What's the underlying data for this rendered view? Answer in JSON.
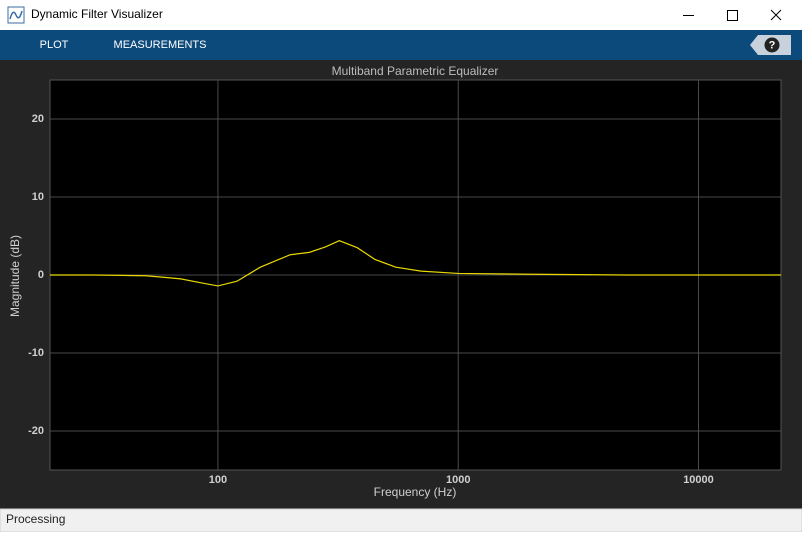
{
  "window": {
    "title": "Dynamic Filter Visualizer",
    "tabs": [
      "PLOT",
      "MEASUREMENTS"
    ],
    "help_button": "?",
    "status": "Processing"
  },
  "chart_data": {
    "type": "line",
    "title": "Multiband Parametric Equalizer",
    "x_label": "Frequency (Hz)",
    "y_label": "Magnitude (dB)",
    "x": [
      20,
      30,
      40,
      50,
      60,
      70,
      85,
      100,
      120,
      150,
      200,
      240,
      280,
      320,
      380,
      450,
      550,
      700,
      1000,
      2000,
      5000,
      10000,
      22050
    ],
    "series": [
      {
        "name": "Magnitude",
        "color": "#e8d800",
        "values": [
          0,
          0,
          -0.05,
          -0.1,
          -0.3,
          -0.5,
          -1.0,
          -1.4,
          -0.8,
          1.0,
          2.6,
          2.9,
          3.6,
          4.4,
          3.5,
          2.0,
          1.0,
          0.5,
          0.2,
          0.1,
          0,
          0,
          0
        ]
      }
    ],
    "x_scale": "log",
    "xlim": [
      20,
      22050
    ],
    "xticks": [
      100,
      1000,
      10000
    ],
    "ylim": [
      -25,
      25
    ],
    "yticks": [
      -20,
      -10,
      0,
      10,
      20
    ],
    "grid": true
  }
}
